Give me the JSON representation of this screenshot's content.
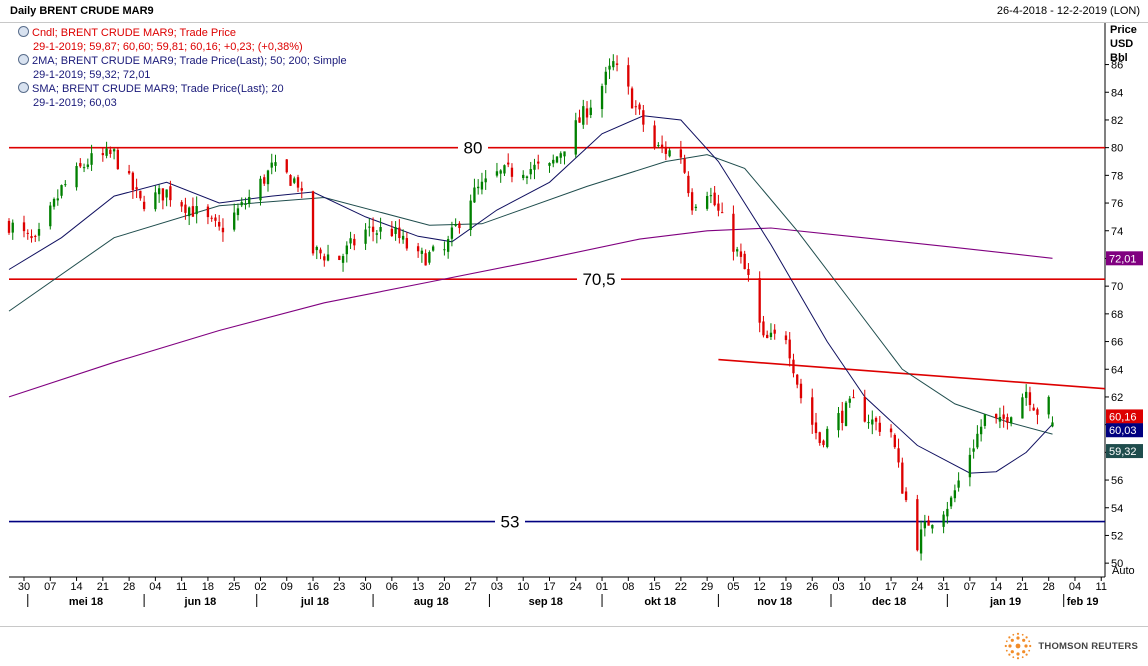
{
  "header": {
    "title": "Daily BRENT CRUDE MAR9",
    "date_range": "26-4-2018 - 12-2-2019 (LON)"
  },
  "legend": [
    {
      "line1": "Cndl; BRENT CRUDE MAR9; Trade Price",
      "line2": "29-1-2019; 59,87; 60,60; 59,81; 60,16; +0,23; (+0,38%)",
      "color": "#dd0000",
      "icon": "indicator-icon"
    },
    {
      "line1": "2MA; BRENT CRUDE MAR9; Trade Price(Last);  50; 200; Simple",
      "line2": "29-1-2019; 59,32; 72,01",
      "color": "#1a1a7a",
      "icon": "indicator-icon"
    },
    {
      "line1": "SMA; BRENT CRUDE MAR9; Trade Price(Last);  20",
      "line2": "29-1-2019; 60,03",
      "color": "#1a1a7a",
      "icon": "indicator-icon"
    }
  ],
  "branding": {
    "logo_text": "THOMSON REUTERS",
    "icon": "thomson-reuters-logo"
  },
  "chart_data": {
    "type": "candlestick",
    "axis_title": [
      "Price",
      "USD",
      "Bbl"
    ],
    "auto_label": "Auto",
    "ylim": [
      49,
      89
    ],
    "y_ticks": [
      50,
      52,
      54,
      56,
      58,
      60,
      62,
      64,
      66,
      68,
      70,
      72,
      74,
      76,
      78,
      80,
      82,
      84,
      86
    ],
    "grid": false,
    "x_day_ticks": [
      "30",
      "07",
      "14",
      "21",
      "28",
      "04",
      "11",
      "18",
      "25",
      "02",
      "09",
      "16",
      "23",
      "30",
      "06",
      "13",
      "20",
      "27",
      "03",
      "10",
      "17",
      "24",
      "01",
      "08",
      "15",
      "22",
      "29",
      "05",
      "12",
      "19",
      "26",
      "03",
      "10",
      "17",
      "24",
      "31",
      "07",
      "14",
      "21",
      "28",
      "04",
      "11"
    ],
    "x_month_labels": [
      "mei 18",
      "jun 18",
      "jul 18",
      "aug 18",
      "sep 18",
      "okt 18",
      "nov 18",
      "dec 18",
      "jan 19",
      "feb 19"
    ],
    "horizontal_levels": [
      {
        "value": 80,
        "label": "80",
        "color": "#dd0000"
      },
      {
        "value": 70.5,
        "label": "70,5",
        "color": "#dd0000"
      },
      {
        "value": 53,
        "label": "53",
        "color": "#000080"
      }
    ],
    "trendline": {
      "start": {
        "date": "2018-11-01",
        "value": 64.7
      },
      "end": {
        "date": "2019-02-12",
        "value": 62.6
      },
      "color": "#dd0000"
    },
    "last_value_badges": [
      {
        "value": 60.16,
        "label": "60,16",
        "color": "#dd0000"
      },
      {
        "value": 60.03,
        "label": "60,03",
        "color": "#000080"
      },
      {
        "value": 59.32,
        "label": "59,32",
        "color": "#1f4d4d"
      },
      {
        "value": 72.01,
        "label": "72,01",
        "color": "#800080"
      }
    ],
    "price_path": [
      [
        "2018-04-26",
        74.5
      ],
      [
        "2018-05-03",
        73.0
      ],
      [
        "2018-05-10",
        77.0
      ],
      [
        "2018-05-17",
        79.0
      ],
      [
        "2018-05-24",
        79.5
      ],
      [
        "2018-05-31",
        76.0
      ],
      [
        "2018-06-07",
        76.8
      ],
      [
        "2018-06-14",
        75.5
      ],
      [
        "2018-06-21",
        74.0
      ],
      [
        "2018-06-28",
        76.0
      ],
      [
        "2018-07-05",
        78.5
      ],
      [
        "2018-07-12",
        77.5
      ],
      [
        "2018-07-16",
        72.5
      ],
      [
        "2018-07-23",
        72.0
      ],
      [
        "2018-07-30",
        74.0
      ],
      [
        "2018-08-06",
        74.0
      ],
      [
        "2018-08-13",
        72.0
      ],
      [
        "2018-08-20",
        72.5
      ],
      [
        "2018-08-27",
        76.5
      ],
      [
        "2018-09-03",
        78.0
      ],
      [
        "2018-09-10",
        78.5
      ],
      [
        "2018-09-17",
        78.5
      ],
      [
        "2018-09-24",
        81.5
      ],
      [
        "2018-10-01",
        84.5
      ],
      [
        "2018-10-04",
        86.0
      ],
      [
        "2018-10-08",
        84.0
      ],
      [
        "2018-10-15",
        80.0
      ],
      [
        "2018-10-22",
        79.5
      ],
      [
        "2018-10-25",
        76.0
      ],
      [
        "2018-10-29",
        77.0
      ],
      [
        "2018-11-05",
        73.0
      ],
      [
        "2018-11-09",
        70.5
      ],
      [
        "2018-11-13",
        66.0
      ],
      [
        "2018-11-19",
        66.5
      ],
      [
        "2018-11-23",
        62.0
      ],
      [
        "2018-11-28",
        58.8
      ],
      [
        "2018-12-03",
        60.5
      ],
      [
        "2018-12-07",
        61.5
      ],
      [
        "2018-12-12",
        60.2
      ],
      [
        "2018-12-17",
        59.5
      ],
      [
        "2018-12-20",
        55.5
      ],
      [
        "2018-12-24",
        51.5
      ],
      [
        "2018-12-27",
        53.0
      ],
      [
        "2019-01-02",
        54.5
      ],
      [
        "2019-01-07",
        58.0
      ],
      [
        "2019-01-11",
        60.5
      ],
      [
        "2019-01-15",
        60.0
      ],
      [
        "2019-01-22",
        62.5
      ],
      [
        "2019-01-25",
        61.0
      ],
      [
        "2019-01-28",
        61.5
      ],
      [
        "2019-01-29",
        60.16
      ]
    ],
    "sma20_path": [
      [
        "2018-04-26",
        71.2
      ],
      [
        "2018-05-10",
        73.5
      ],
      [
        "2018-05-24",
        76.5
      ],
      [
        "2018-06-07",
        77.5
      ],
      [
        "2018-06-21",
        76.0
      ],
      [
        "2018-07-05",
        76.5
      ],
      [
        "2018-07-16",
        76.8
      ],
      [
        "2018-07-30",
        75.0
      ],
      [
        "2018-08-13",
        73.6
      ],
      [
        "2018-08-22",
        73.2
      ],
      [
        "2018-09-03",
        75.5
      ],
      [
        "2018-09-17",
        77.5
      ],
      [
        "2018-10-01",
        81.0
      ],
      [
        "2018-10-12",
        82.3
      ],
      [
        "2018-10-22",
        82.0
      ],
      [
        "2018-11-01",
        79.0
      ],
      [
        "2018-11-15",
        73.0
      ],
      [
        "2018-11-30",
        66.0
      ],
      [
        "2018-12-10",
        62.0
      ],
      [
        "2018-12-24",
        58.5
      ],
      [
        "2019-01-07",
        56.5
      ],
      [
        "2019-01-14",
        56.6
      ],
      [
        "2019-01-22",
        58.0
      ],
      [
        "2019-01-29",
        60.03
      ]
    ],
    "ma50_path": [
      [
        "2018-04-26",
        68.2
      ],
      [
        "2018-05-24",
        73.5
      ],
      [
        "2018-06-21",
        75.8
      ],
      [
        "2018-07-19",
        76.4
      ],
      [
        "2018-08-16",
        74.4
      ],
      [
        "2018-08-30",
        74.5
      ],
      [
        "2018-09-27",
        77.2
      ],
      [
        "2018-10-18",
        79.0
      ],
      [
        "2018-10-29",
        79.5
      ],
      [
        "2018-11-08",
        78.5
      ],
      [
        "2018-11-22",
        74.0
      ],
      [
        "2018-12-06",
        69.0
      ],
      [
        "2018-12-20",
        64.0
      ],
      [
        "2019-01-03",
        61.5
      ],
      [
        "2019-01-17",
        60.2
      ],
      [
        "2019-01-29",
        59.32
      ]
    ],
    "ma200_path": [
      [
        "2018-04-26",
        62.0
      ],
      [
        "2018-05-24",
        64.5
      ],
      [
        "2018-06-21",
        66.8
      ],
      [
        "2018-07-19",
        68.8
      ],
      [
        "2018-08-16",
        70.3
      ],
      [
        "2018-09-13",
        71.8
      ],
      [
        "2018-10-11",
        73.4
      ],
      [
        "2018-10-29",
        74.0
      ],
      [
        "2018-11-15",
        74.2
      ],
      [
        "2018-12-06",
        73.6
      ],
      [
        "2019-01-03",
        72.8
      ],
      [
        "2019-01-29",
        72.01
      ]
    ]
  }
}
